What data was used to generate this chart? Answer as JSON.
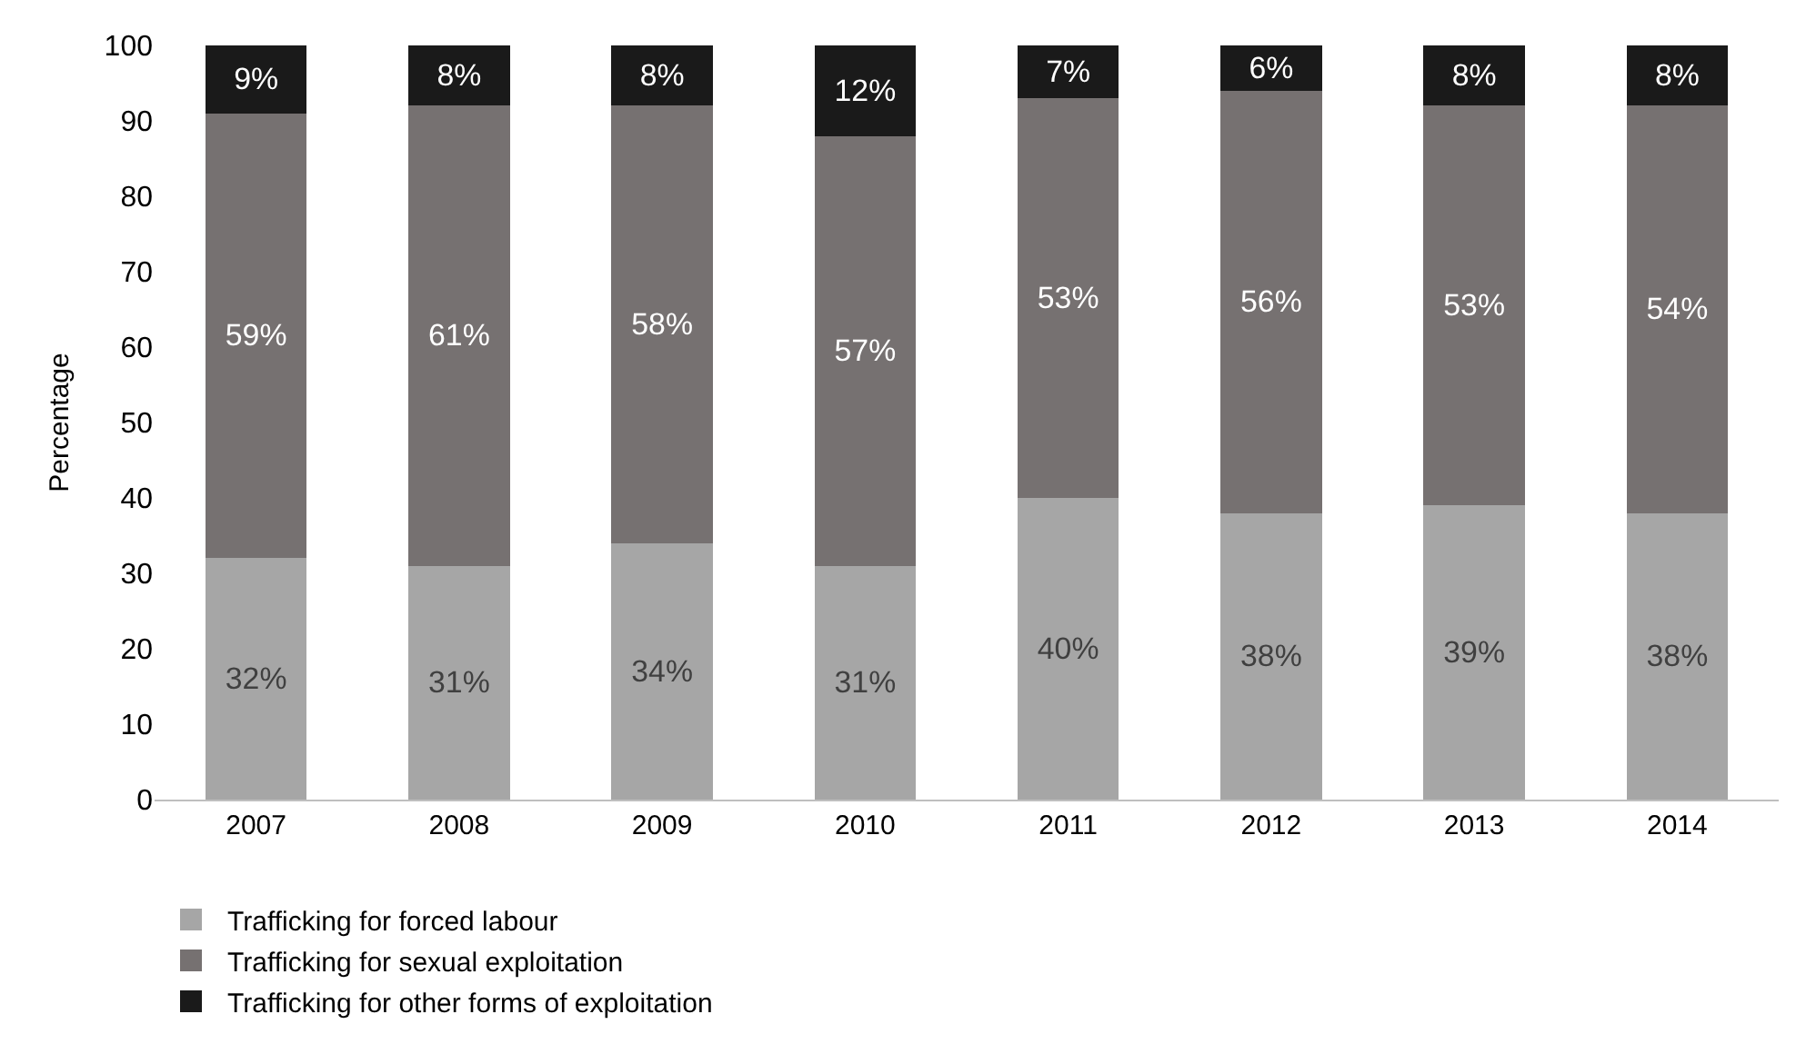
{
  "chart_data": {
    "type": "bar",
    "stacked": true,
    "ylabel": "Percentage",
    "categories": [
      "2007",
      "2008",
      "2009",
      "2010",
      "2011",
      "2012",
      "2013",
      "2014"
    ],
    "series": [
      {
        "name": "Trafficking for forced labour",
        "color": "#a6a6a6",
        "values": [
          32,
          31,
          34,
          31,
          40,
          38,
          39,
          38
        ],
        "value_labels": [
          "32%",
          "31%",
          "34%",
          "31%",
          "40%",
          "38%",
          "39%",
          "38%"
        ]
      },
      {
        "name": "Trafficking for sexual exploitation",
        "color": "#767171",
        "values": [
          59,
          61,
          58,
          57,
          53,
          56,
          53,
          54
        ],
        "value_labels": [
          "59%",
          "61%",
          "58%",
          "57%",
          "53%",
          "56%",
          "53%",
          "54%"
        ]
      },
      {
        "name": "Trafficking for other forms of exploitation",
        "color": "#1a1a1a",
        "values": [
          9,
          8,
          8,
          12,
          7,
          6,
          8,
          8
        ],
        "value_labels": [
          "9%",
          "8%",
          "8%",
          "12%",
          "7%",
          "6%",
          "8%",
          "8%"
        ]
      }
    ],
    "ylim": [
      0,
      100
    ],
    "yticks": [
      0,
      10,
      20,
      30,
      40,
      50,
      60,
      70,
      80,
      90,
      100
    ],
    "grid": false,
    "legend": "bottom"
  }
}
